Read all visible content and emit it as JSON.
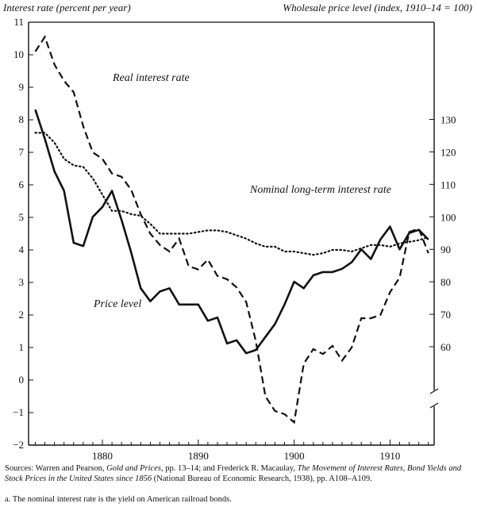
{
  "left_axis_title": "Interest rate (percent per year)",
  "right_axis_title": "Wholesale price level (index, 1910–14 = 100)",
  "sources": {
    "prefix": "Sources:  Warren and Pearson, ",
    "book1": "Gold and Prices",
    "mid1": ", pp. 13–14; and Frederick R. Macaulay, ",
    "book2": "The Movement of Interest Rates, Bond Yields and Stock Prices in the United States since 1856",
    "suffix": " (National Bureau of Economic Research, 1938), pp. A108–A109."
  },
  "footnote": "a.  The nominal interest rate is the yield on American railroad bonds.",
  "chart_data": {
    "type": "line",
    "x_ticks": [
      "1880",
      "1890",
      "1900",
      "1910"
    ],
    "ylim_left": [
      -2,
      11
    ],
    "y_ticks_left": [
      "−2",
      "−1",
      "0",
      "1",
      "2",
      "3",
      "4",
      "5",
      "6",
      "7",
      "8",
      "9",
      "10",
      "11"
    ],
    "ylim_right": [
      50,
      130
    ],
    "y_ticks_right": [
      "60",
      "70",
      "80",
      "90",
      "100",
      "110",
      "120",
      "130"
    ],
    "right_axis_break": true,
    "grid": false,
    "series": [
      {
        "name": "Real interest rate",
        "style": "dashed",
        "axis": "left",
        "x": [
          1873,
          1874,
          1875,
          1876,
          1877,
          1878,
          1879,
          1880,
          1881,
          1882,
          1883,
          1884,
          1885,
          1886,
          1887,
          1888,
          1889,
          1890,
          1891,
          1892,
          1893,
          1894,
          1895,
          1896,
          1897,
          1898,
          1899,
          1900,
          1901,
          1902,
          1903,
          1904,
          1905,
          1906,
          1907,
          1908,
          1909,
          1910,
          1911,
          1912,
          1913,
          1914
        ],
        "y": [
          10.1,
          10.55,
          9.7,
          9.2,
          8.85,
          7.8,
          7.0,
          6.8,
          6.35,
          6.25,
          5.85,
          5.1,
          4.5,
          4.15,
          3.95,
          4.35,
          3.5,
          3.4,
          3.7,
          3.2,
          3.1,
          2.85,
          2.4,
          1.2,
          -0.5,
          -0.95,
          -1.05,
          -1.3,
          0.5,
          0.95,
          0.8,
          1.05,
          0.6,
          1.0,
          1.9,
          1.9,
          2.0,
          2.7,
          3.15,
          4.55,
          4.65,
          3.9
        ]
      },
      {
        "name": "Nominal long-term interest rate",
        "style": "dotted",
        "axis": "left",
        "x": [
          1873,
          1874,
          1875,
          1876,
          1877,
          1878,
          1879,
          1880,
          1881,
          1882,
          1883,
          1884,
          1885,
          1886,
          1887,
          1888,
          1889,
          1890,
          1891,
          1892,
          1893,
          1894,
          1895,
          1896,
          1897,
          1898,
          1899,
          1900,
          1901,
          1902,
          1903,
          1904,
          1905,
          1906,
          1907,
          1908,
          1909,
          1910,
          1911,
          1912,
          1913,
          1914
        ],
        "y": [
          7.6,
          7.6,
          7.3,
          6.8,
          6.6,
          6.55,
          6.2,
          5.7,
          5.2,
          5.2,
          5.1,
          5.05,
          4.8,
          4.5,
          4.5,
          4.5,
          4.5,
          4.55,
          4.6,
          4.6,
          4.55,
          4.45,
          4.35,
          4.2,
          4.1,
          4.1,
          3.95,
          3.95,
          3.9,
          3.85,
          3.9,
          4.0,
          4.0,
          3.95,
          4.05,
          4.15,
          4.15,
          4.1,
          4.2,
          4.25,
          4.3,
          4.4
        ]
      },
      {
        "name": "Price level",
        "style": "solid",
        "axis": "right",
        "x": [
          1873,
          1874,
          1875,
          1876,
          1877,
          1878,
          1879,
          1880,
          1881,
          1882,
          1883,
          1884,
          1885,
          1886,
          1887,
          1888,
          1889,
          1890,
          1891,
          1892,
          1893,
          1894,
          1895,
          1896,
          1897,
          1898,
          1899,
          1900,
          1901,
          1902,
          1903,
          1904,
          1905,
          1906,
          1907,
          1908,
          1909,
          1910,
          1911,
          1912,
          1913,
          1914
        ],
        "y": [
          133,
          124,
          114,
          108,
          92,
          91,
          100,
          103,
          108,
          99,
          89,
          78,
          74,
          77,
          78,
          73,
          73,
          73,
          68,
          69,
          61,
          62,
          58,
          59,
          63,
          67,
          73,
          80,
          78,
          82,
          83,
          83,
          84,
          86,
          90,
          87,
          93,
          97,
          90,
          95,
          96,
          93
        ]
      }
    ],
    "labels": [
      "Real interest rate",
      "Nominal long-term interest rate",
      "Price level"
    ]
  }
}
